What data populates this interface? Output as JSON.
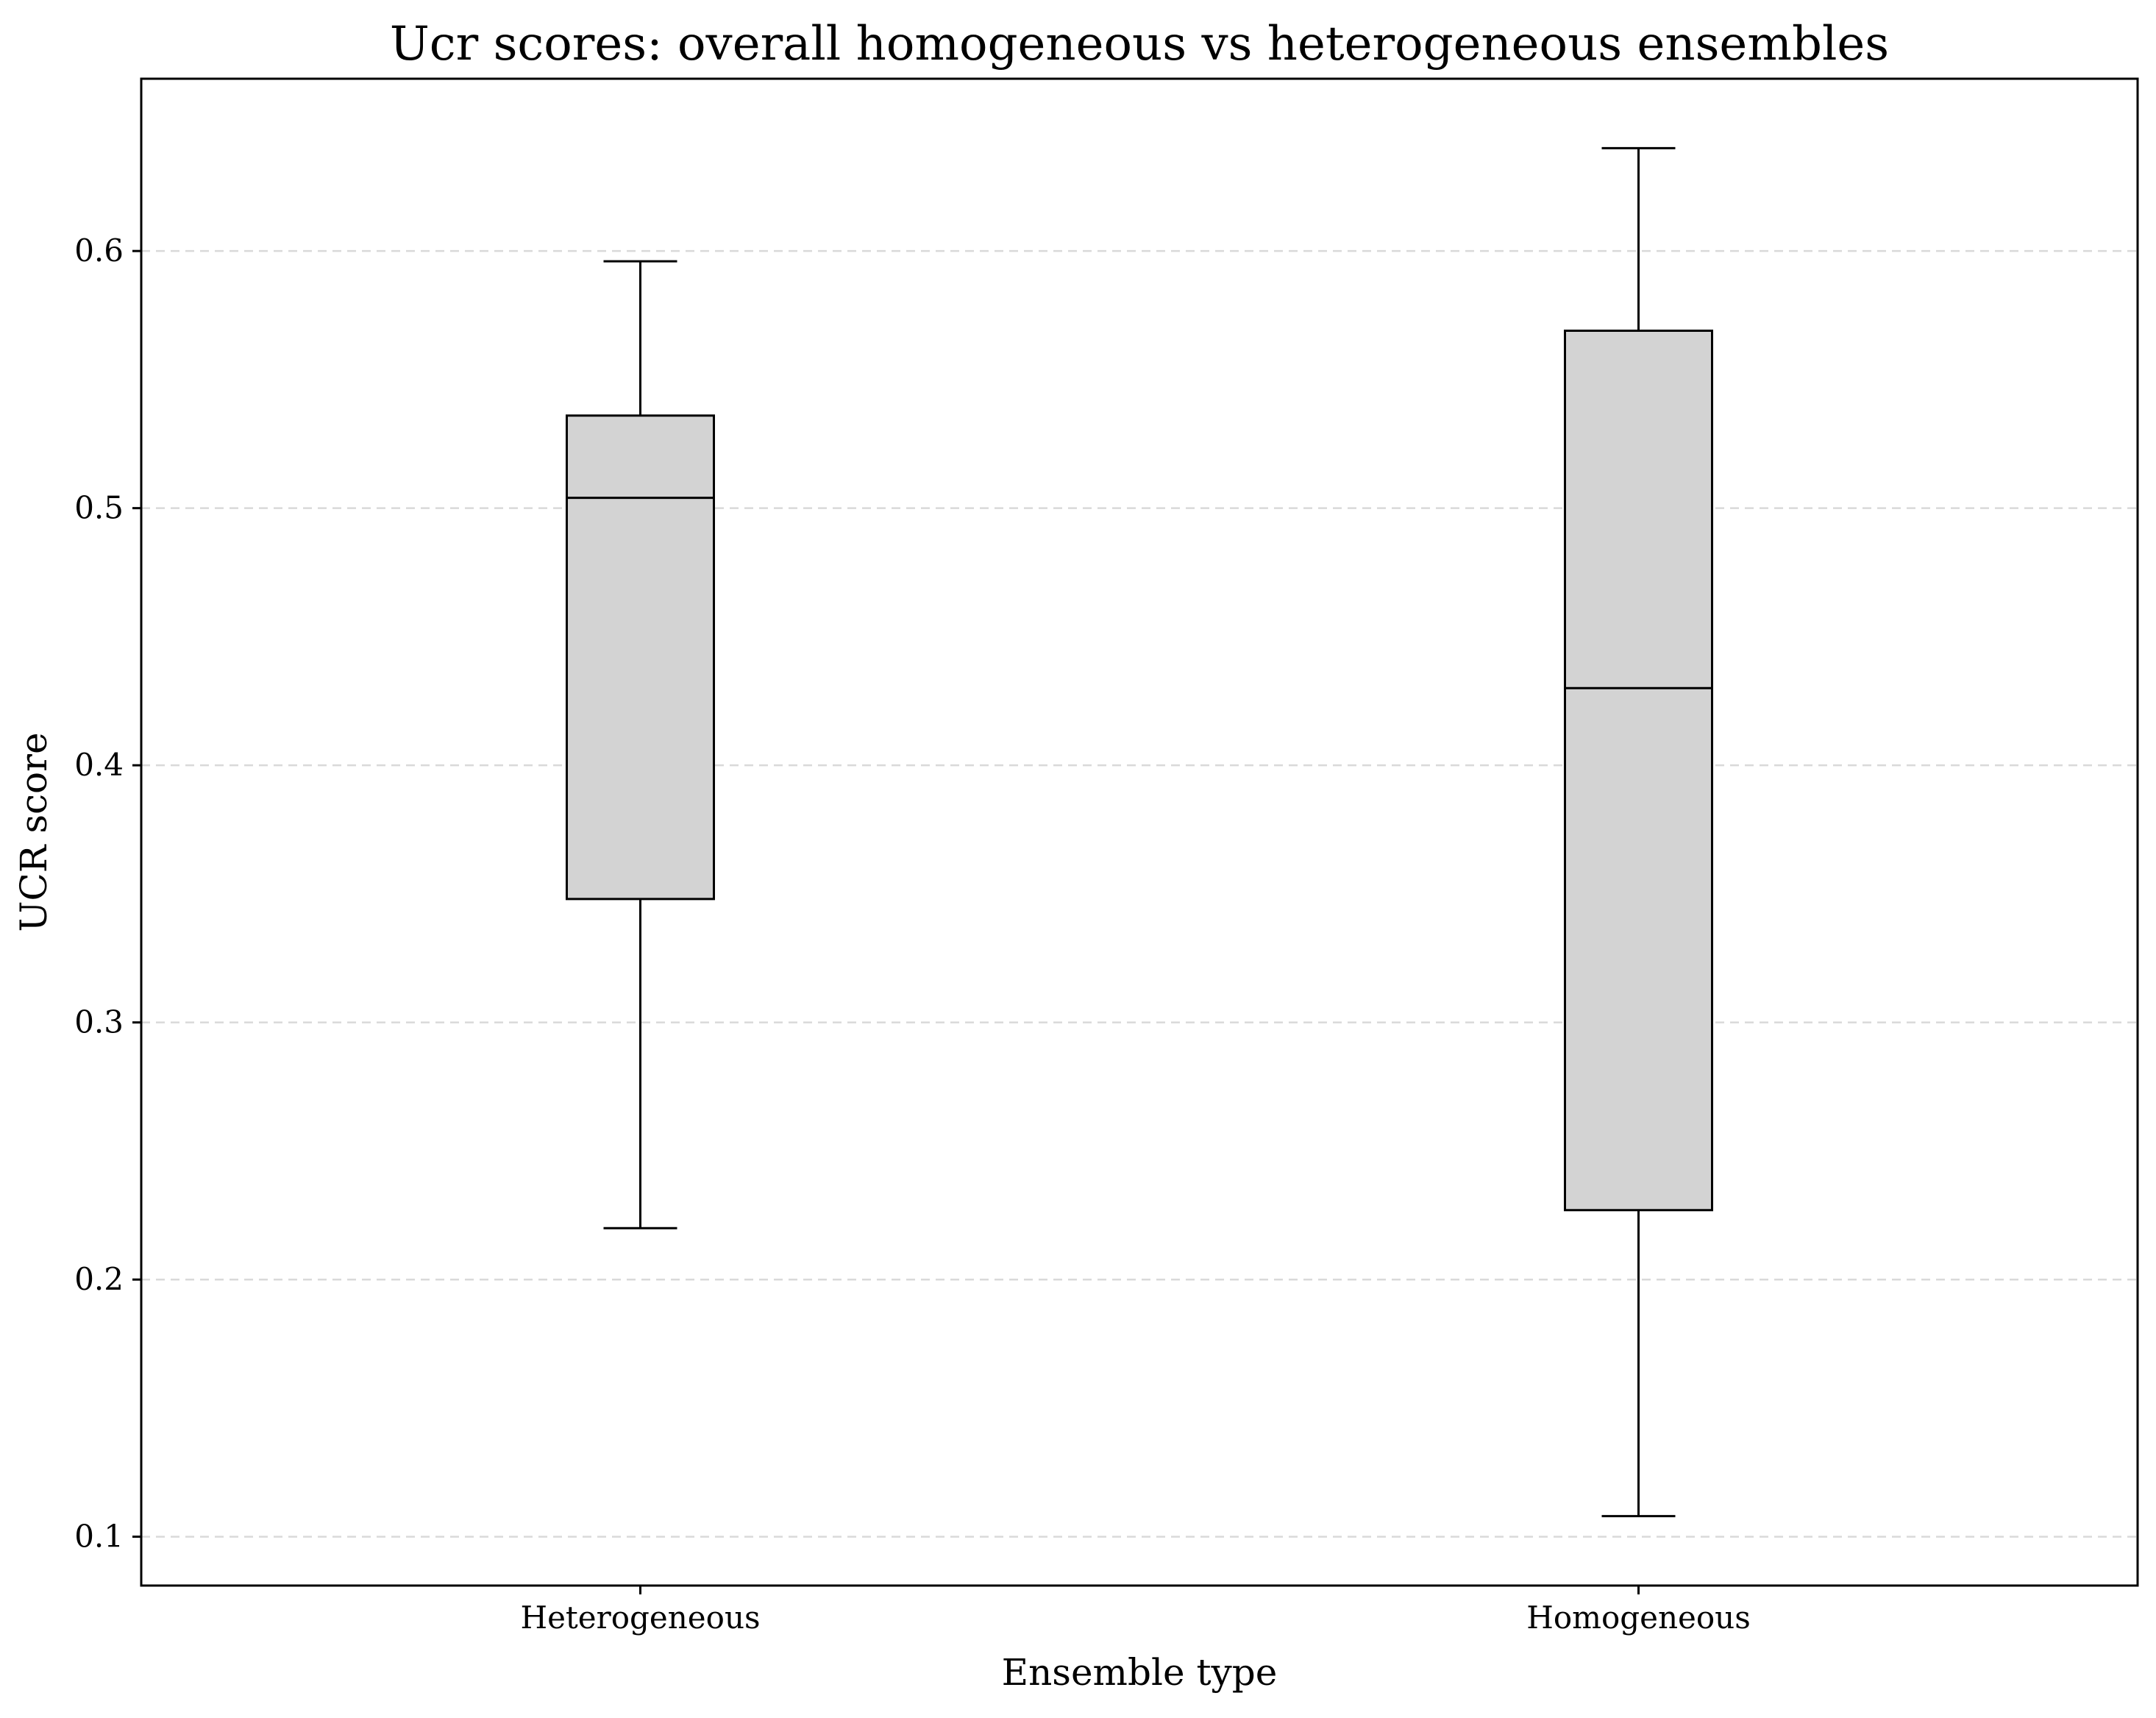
{
  "chart_data": {
    "type": "box",
    "title": "Ucr scores: overall homogeneous vs heterogeneous ensembles",
    "xlabel": "Ensemble type",
    "ylabel": "UCR score",
    "categories": [
      "Heterogeneous",
      "Homogeneous"
    ],
    "boxes": [
      {
        "category": "Heterogeneous",
        "whisker_low": 0.22,
        "q1": 0.348,
        "median": 0.504,
        "q3": 0.536,
        "whisker_high": 0.596
      },
      {
        "category": "Homogeneous",
        "whisker_low": 0.108,
        "q1": 0.227,
        "median": 0.43,
        "q3": 0.569,
        "whisker_high": 0.64
      }
    ],
    "ylim": [
      0.081,
      0.667
    ],
    "yticks": [
      0.1,
      0.2,
      0.3,
      0.4,
      0.5,
      0.6
    ],
    "ytick_labels": [
      "0.1",
      "0.2",
      "0.3",
      "0.4",
      "0.5",
      "0.6"
    ],
    "grid": "y-dashed",
    "legend": "none",
    "colors": {
      "box_fill": "#d3d3d3",
      "line": "#000000",
      "grid": "#d9d9d9"
    }
  }
}
